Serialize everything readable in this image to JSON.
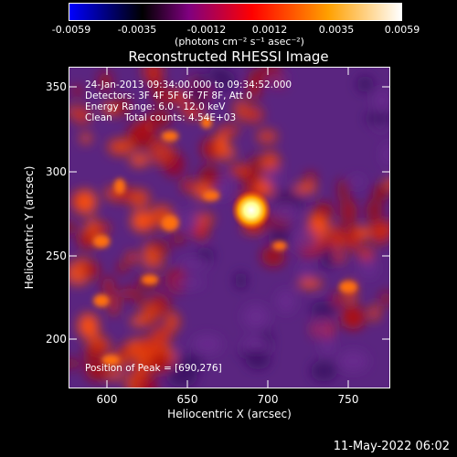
{
  "colorbar": {
    "tick_labels": [
      "-0.0059",
      "-0.0035",
      "-0.0012",
      "0.0012",
      "0.0035",
      "0.0059"
    ],
    "units": "(photons cm⁻² s⁻¹ asec⁻²)",
    "colors": [
      "#0000ff",
      "#000000",
      "#800080",
      "#ff0000",
      "#ffa000",
      "#ffffff"
    ]
  },
  "title": "Reconstructed RHESSI Image",
  "overlay": {
    "time_range": "24-Jan-2013 09:34:00.000 to 09:34:52.000",
    "detectors": "Detectors: 3F 4F 5F 6F 7F 8F, Att 0",
    "energy_range": "Energy Range: 6.0 - 12.0 keV",
    "method_counts": "Clean    Total counts: 4.54E+03",
    "peak_position": "Position of Peak = [690,276]"
  },
  "axes": {
    "x_label": "Heliocentric X (arcsec)",
    "y_label": "Heliocentric Y (arcsec)",
    "x_ticks": [
      "600",
      "650",
      "700",
      "750"
    ],
    "y_ticks": [
      "350",
      "300",
      "250",
      "200"
    ]
  },
  "footer_date": "11-May-2022 06:02"
}
